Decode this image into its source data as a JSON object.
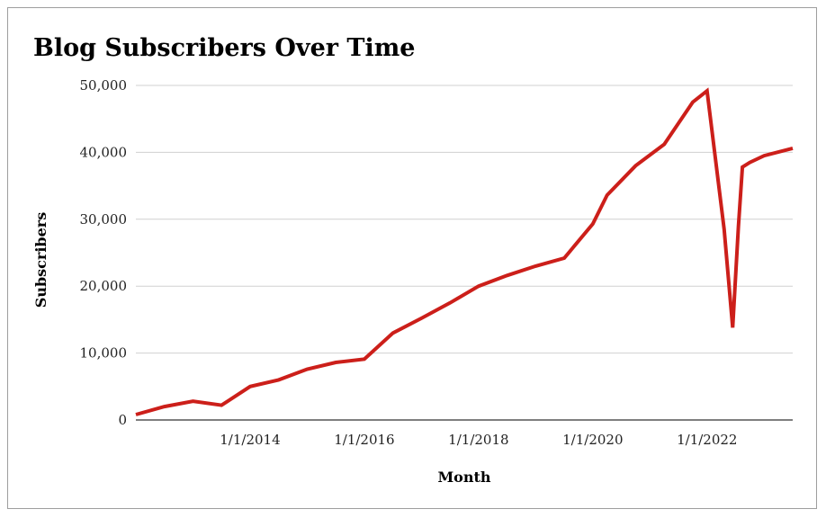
{
  "chart_data": {
    "type": "line",
    "title": "Blog Subscribers Over Time",
    "xlabel": "Month",
    "ylabel": "Subscribers",
    "ylim": [
      0,
      50000
    ],
    "yticks": [
      {
        "value": 0,
        "label": "0"
      },
      {
        "value": 10000,
        "label": "10,000"
      },
      {
        "value": 20000,
        "label": "20,000"
      },
      {
        "value": 30000,
        "label": "30,000"
      },
      {
        "value": 40000,
        "label": "40,000"
      },
      {
        "value": 50000,
        "label": "50,000"
      }
    ],
    "xlim": [
      2012.0,
      2023.5
    ],
    "xticks": [
      {
        "value": 2014.0,
        "label": "1/1/2014"
      },
      {
        "value": 2016.0,
        "label": "1/1/2016"
      },
      {
        "value": 2018.0,
        "label": "1/1/2018"
      },
      {
        "value": 2020.0,
        "label": "1/1/2020"
      },
      {
        "value": 2022.0,
        "label": "1/1/2022"
      }
    ],
    "grid": true,
    "series": [
      {
        "name": "Subscribers",
        "color": "#cc1f1a",
        "x": [
          2012.0,
          2012.5,
          2013.0,
          2013.5,
          2014.0,
          2014.5,
          2015.0,
          2015.5,
          2016.0,
          2016.5,
          2017.0,
          2017.5,
          2018.0,
          2018.5,
          2019.0,
          2019.5,
          2020.0,
          2020.25,
          2020.75,
          2021.25,
          2021.75,
          2022.0,
          2022.3,
          2022.45,
          2022.55,
          2022.62,
          2022.75,
          2023.0,
          2023.5
        ],
        "values": [
          800,
          2000,
          2800,
          2200,
          5000,
          6000,
          7600,
          8600,
          9100,
          13000,
          15200,
          17500,
          20000,
          21600,
          23000,
          24200,
          29300,
          33600,
          38000,
          41200,
          47500,
          49200,
          28500,
          13800,
          29000,
          37800,
          38500,
          39500,
          40600
        ]
      }
    ]
  }
}
